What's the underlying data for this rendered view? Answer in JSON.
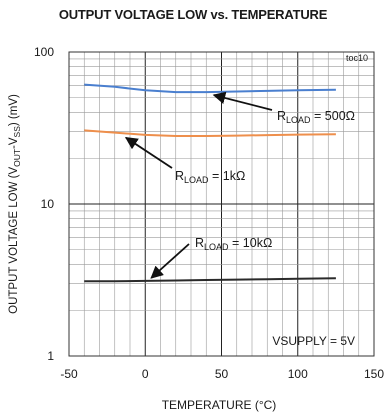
{
  "chart_data": {
    "type": "line",
    "title": "OUTPUT VOLTAGE LOW vs. TEMPERATURE",
    "tag": "toc10",
    "xlabel": "TEMPERATURE  (°C)",
    "ylabel": "OUTPUT VOLTAGE LOW (V",
    "ylabel_sub1": "OUT",
    "ylabel_mid": "-V",
    "ylabel_sub2": "SS",
    "ylabel_end": ") (mV)",
    "x_ticks": [
      "-50",
      "0",
      "50",
      "100",
      "150"
    ],
    "y_ticks": [
      "1",
      "10",
      "100"
    ],
    "xlim": [
      -50,
      150
    ],
    "ylim": [
      1,
      100
    ],
    "yscale": "log",
    "grid": true,
    "series": [
      {
        "label_main": "R",
        "label_sub": "LOAD",
        "label_rest": " = 500Ω",
        "color": "#4a7fcf",
        "x": [
          -40,
          -20,
          0,
          20,
          40,
          60,
          80,
          100,
          125
        ],
        "values": [
          61,
          59,
          56,
          54.5,
          54.5,
          55,
          55.5,
          56,
          56.5
        ]
      },
      {
        "label_main": "R",
        "label_sub": "LOAD",
        "label_rest": " = 1kΩ",
        "color": "#ee8f4c",
        "x": [
          -40,
          -20,
          0,
          20,
          40,
          60,
          80,
          100,
          125
        ],
        "values": [
          30.5,
          29.5,
          28.5,
          28,
          28,
          28.2,
          28.4,
          28.6,
          28.8
        ]
      },
      {
        "label_main": "R",
        "label_sub": "LOAD",
        "label_rest": " = 10kΩ",
        "color": "#2a2a2a",
        "x": [
          -40,
          -20,
          0,
          20,
          40,
          60,
          80,
          100,
          125
        ],
        "values": [
          3.1,
          3.1,
          3.12,
          3.14,
          3.16,
          3.18,
          3.2,
          3.22,
          3.25
        ]
      }
    ],
    "annotation": "VSUPPLY = 5V"
  }
}
